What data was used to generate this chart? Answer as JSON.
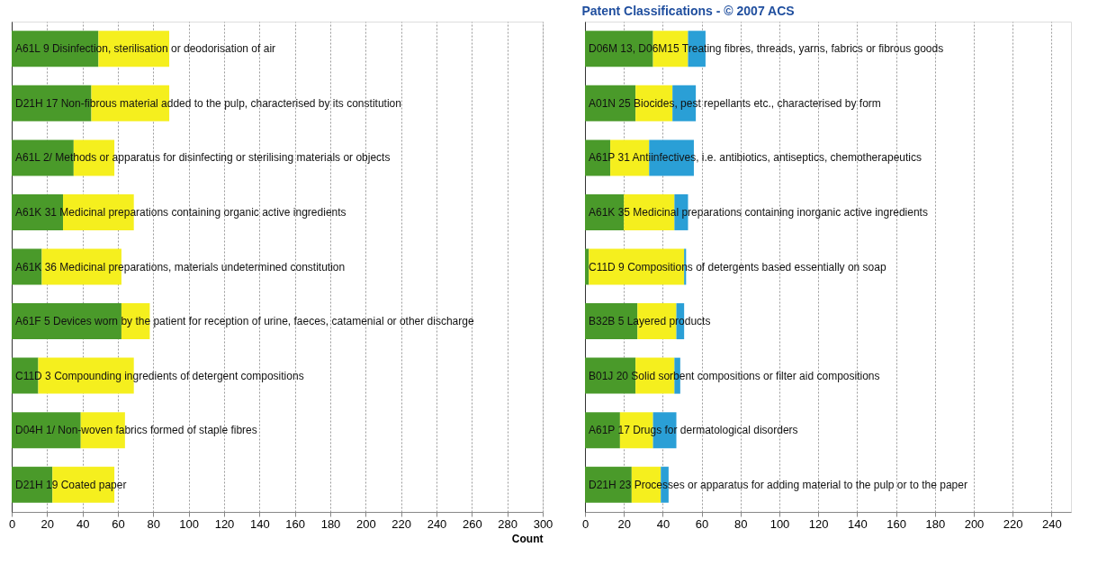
{
  "chart_data": [
    {
      "type": "bar",
      "orientation": "horizontal",
      "stacked": true,
      "xlabel": "Count",
      "grid": "x",
      "xlim": [
        0,
        300
      ],
      "xticks": [
        0,
        20,
        40,
        60,
        80,
        100,
        120,
        140,
        160,
        180,
        200,
        220,
        240,
        260,
        280,
        300
      ],
      "categories": [
        "A61L 9 Disinfection, sterilisation or deodorisation of air",
        "D21H 17 Non-fibrous material added to the pulp, characterised by its constitution",
        "A61L 2/ Methods or apparatus for disinfecting or sterilising materials or objects",
        "A61K 31 Medicinal preparations containing organic active ingredients",
        "A61K 36 Medicinal preparations, materials undetermined constitution",
        "A61F 5 Devices worn by the patient for reception of urine, faeces, catamenial or other discharge",
        "C11D 3 Compounding ingredients of detergent compositions",
        "D04H 1/ Non-woven fabrics formed of staple fibres",
        "D21H 19 Coated paper"
      ],
      "series": [
        {
          "color": "#4a9a2a",
          "values": [
            49,
            45,
            35,
            29,
            17,
            62,
            15,
            39,
            23
          ]
        },
        {
          "color": "#f5ef1e",
          "values": [
            40,
            44,
            23,
            40,
            45,
            16,
            54,
            25,
            35
          ]
        }
      ]
    },
    {
      "type": "bar",
      "orientation": "horizontal",
      "stacked": true,
      "title": "Patent Classifications - © 2007 ACS",
      "grid": "x",
      "xlim": [
        0,
        250
      ],
      "xticks": [
        0,
        20,
        40,
        60,
        80,
        100,
        120,
        140,
        160,
        180,
        200,
        220,
        240
      ],
      "categories": [
        "D06M 13, D06M15 Treating fibres, threads, yarns, fabrics or fibrous goods",
        "A01N 25 Biocides, pest repellants etc., characterised by form",
        "A61P 31 Antiinfectives, i.e. antibiotics, antiseptics, chemotherapeutics",
        "A61K 35 Medicinal preparations containing inorganic active ingredients",
        "C11D 9 Compositions of detergents based essentially on soap",
        "B32B 5 Layered products",
        "B01J 20 Solid sorbent compositions or filter aid compositions",
        "A61P 17 Drugs for dermatological disorders",
        "D21H 23 Processes or apparatus for adding material to the pulp or to the paper"
      ],
      "series": [
        {
          "color": "#4a9a2a",
          "values": [
            35,
            26,
            13,
            20,
            2,
            27,
            26,
            18,
            24
          ]
        },
        {
          "color": "#f5ef1e",
          "values": [
            18,
            19,
            20,
            26,
            49,
            20,
            20,
            17,
            15
          ]
        },
        {
          "color": "#2a9fd6",
          "values": [
            9,
            12,
            23,
            7,
            1,
            4,
            3,
            12,
            4
          ]
        }
      ]
    }
  ]
}
